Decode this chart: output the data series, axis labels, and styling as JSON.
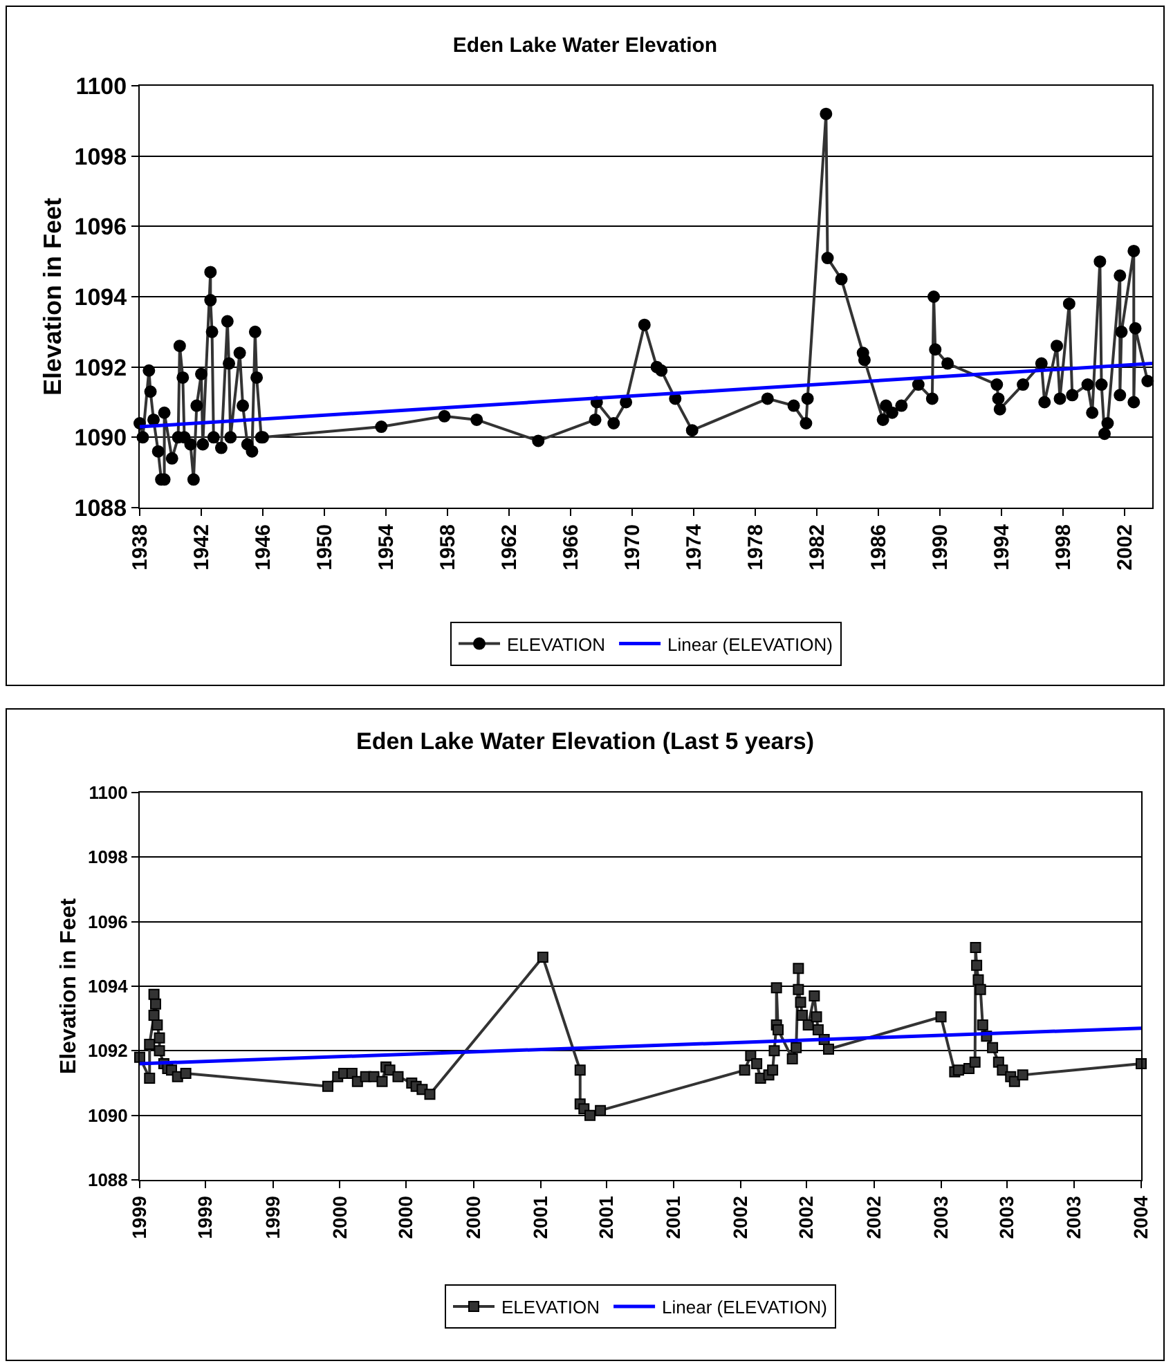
{
  "chart_data": [
    {
      "type": "line",
      "title": "Eden Lake Water Elevation",
      "ylabel": "Elevation in Feet",
      "marker": "circle",
      "grid": "y",
      "legend": "bottom",
      "xlim": [
        1938,
        2003.8
      ],
      "xticks": [
        1938,
        1942,
        1946,
        1950,
        1954,
        1958,
        1962,
        1966,
        1970,
        1974,
        1978,
        1982,
        1986,
        1990,
        1994,
        1998,
        2002
      ],
      "ylim": [
        1088,
        1100
      ],
      "yticks": [
        1088,
        1090,
        1092,
        1094,
        1096,
        1098,
        1100
      ],
      "series": [
        {
          "name": "ELEVATION",
          "color": "#333333",
          "x": [
            1938.0,
            1938.2,
            1938.6,
            1938.7,
            1938.9,
            1939.2,
            1939.4,
            1939.6,
            1939.6,
            1940.1,
            1940.5,
            1940.6,
            1940.8,
            1940.9,
            1941.3,
            1941.5,
            1941.7,
            1942.0,
            1942.1,
            1942.6,
            1942.6,
            1942.7,
            1942.8,
            1943.3,
            1943.7,
            1943.8,
            1943.9,
            1944.5,
            1944.7,
            1945.0,
            1945.3,
            1945.5,
            1945.6,
            1945.9,
            1946.0,
            1953.7,
            1957.8,
            1959.9,
            1963.9,
            1967.6,
            1967.7,
            1968.8,
            1969.6,
            1970.8,
            1971.6,
            1971.9,
            1972.8,
            1973.9,
            1978.8,
            1980.5,
            1981.3,
            1981.4,
            1982.6,
            1982.7,
            1983.6,
            1985.0,
            1985.1,
            1986.3,
            1986.5,
            1986.9,
            1987.5,
            1988.6,
            1989.5,
            1989.6,
            1989.7,
            1990.5,
            1993.7,
            1993.8,
            1993.9,
            1995.4,
            1996.6,
            1996.8,
            1997.6,
            1997.8,
            1998.4,
            1998.6,
            1999.6,
            1999.9,
            2000.4,
            2000.5,
            2000.7,
            2000.9,
            2001.7,
            2001.7,
            2001.8,
            2002.6,
            2002.6,
            2002.7,
            2003.5
          ],
          "values": [
            1090.4,
            1090.0,
            1091.9,
            1091.3,
            1090.5,
            1089.6,
            1088.8,
            1088.8,
            1090.7,
            1089.4,
            1090.0,
            1092.6,
            1091.7,
            1090.0,
            1089.8,
            1088.8,
            1090.9,
            1091.8,
            1089.8,
            1094.7,
            1093.9,
            1093.0,
            1090.0,
            1089.7,
            1093.3,
            1092.1,
            1090.0,
            1092.4,
            1090.9,
            1089.8,
            1089.6,
            1093.0,
            1091.7,
            1090.0,
            1090.0,
            1090.3,
            1090.6,
            1090.5,
            1089.9,
            1090.5,
            1091.0,
            1090.4,
            1091.0,
            1093.2,
            1092.0,
            1091.9,
            1091.1,
            1090.2,
            1091.1,
            1090.9,
            1090.4,
            1091.1,
            1099.2,
            1095.1,
            1094.5,
            1092.4,
            1092.2,
            1090.5,
            1090.9,
            1090.7,
            1090.9,
            1091.5,
            1091.1,
            1094.0,
            1092.5,
            1092.1,
            1091.5,
            1091.1,
            1090.8,
            1091.5,
            1092.1,
            1091.0,
            1092.6,
            1091.1,
            1093.8,
            1091.2,
            1091.5,
            1090.7,
            1095.0,
            1091.5,
            1090.1,
            1090.4,
            1094.6,
            1091.2,
            1093.0,
            1095.3,
            1091.0,
            1093.1,
            1091.6
          ]
        },
        {
          "name": "Linear (ELEVATION)",
          "type": "line",
          "marker": "none",
          "color": "#0000ff",
          "x": [
            1938,
            2003.8
          ],
          "values": [
            1090.3,
            1092.1
          ]
        }
      ]
    },
    {
      "type": "line",
      "title": "Eden Lake Water Elevation (Last 5 years)",
      "ylabel": "Elevation in Feet",
      "marker": "square",
      "grid": "y",
      "legend": "bottom",
      "xlim": [
        "1999-01-01",
        "2004-01-01"
      ],
      "xticks": [
        {
          "value": "1999-01-01",
          "label": "1999"
        },
        {
          "value": "1999-05-01",
          "label": "1999"
        },
        {
          "value": "1999-09-01",
          "label": "1999"
        },
        {
          "value": "2000-01-01",
          "label": "2000"
        },
        {
          "value": "2000-05-01",
          "label": "2000"
        },
        {
          "value": "2000-09-01",
          "label": "2000"
        },
        {
          "value": "2001-01-01",
          "label": "2001"
        },
        {
          "value": "2001-05-01",
          "label": "2001"
        },
        {
          "value": "2001-09-01",
          "label": "2001"
        },
        {
          "value": "2002-01-01",
          "label": "2002"
        },
        {
          "value": "2002-05-01",
          "label": "2002"
        },
        {
          "value": "2002-09-01",
          "label": "2002"
        },
        {
          "value": "2003-01-01",
          "label": "2003"
        },
        {
          "value": "2003-05-01",
          "label": "2003"
        },
        {
          "value": "2003-09-01",
          "label": "2003"
        },
        {
          "value": "2004-01-01",
          "label": "2004"
        }
      ],
      "ylim": [
        1088,
        1100
      ],
      "yticks": [
        1088,
        1090,
        1092,
        1094,
        1096,
        1098,
        1100
      ],
      "series": [
        {
          "name": "ELEVATION",
          "color": "#333333",
          "x": [
            "1999-01-01",
            "1999-01-19",
            "1999-01-19",
            "1999-01-27",
            "1999-01-27",
            "1999-01-30",
            "1999-02-02",
            "1999-02-06",
            "1999-02-06",
            "1999-02-14",
            "1999-02-21",
            "1999-02-28",
            "1999-03-11",
            "1999-03-26",
            "1999-12-10",
            "1999-12-28",
            "2000-01-08",
            "2000-01-23",
            "2000-02-02",
            "2000-02-17",
            "2000-03-03",
            "2000-03-18",
            "2000-03-25",
            "2000-04-01",
            "2000-04-16",
            "2000-05-11",
            "2000-05-19",
            "2000-05-30",
            "2000-06-13",
            "2001-01-05",
            "2001-03-14",
            "2001-03-14",
            "2001-03-21",
            "2001-04-01",
            "2001-04-20",
            "2002-01-08",
            "2002-01-19",
            "2002-01-30",
            "2002-02-06",
            "2002-02-21",
            "2002-02-28",
            "2002-03-03",
            "2002-03-07",
            "2002-03-07",
            "2002-03-10",
            "2002-04-05",
            "2002-04-12",
            "2002-04-16",
            "2002-04-16",
            "2002-04-20",
            "2002-04-23",
            "2002-05-04",
            "2002-05-15",
            "2002-05-19",
            "2002-05-22",
            "2002-06-02",
            "2002-06-10",
            "2003-01-01",
            "2003-01-26",
            "2003-02-02",
            "2003-02-21",
            "2003-03-04",
            "2003-03-05",
            "2003-03-07",
            "2003-03-10",
            "2003-03-14",
            "2003-03-18",
            "2003-03-25",
            "2003-04-05",
            "2003-04-16",
            "2003-04-23",
            "2003-05-08",
            "2003-05-15",
            "2003-05-30",
            "2004-01-01"
          ],
          "values": [
            1091.8,
            1091.15,
            1092.2,
            1093.1,
            1093.75,
            1093.45,
            1092.8,
            1092.4,
            1092.0,
            1091.6,
            1091.45,
            1091.4,
            1091.2,
            1091.3,
            1090.9,
            1091.2,
            1091.3,
            1091.3,
            1091.05,
            1091.2,
            1091.2,
            1091.05,
            1091.5,
            1091.4,
            1091.2,
            1091.0,
            1090.9,
            1090.8,
            1090.65,
            1094.9,
            1091.4,
            1090.35,
            1090.2,
            1090.0,
            1090.15,
            1091.4,
            1091.85,
            1091.6,
            1091.15,
            1091.25,
            1091.4,
            1092.0,
            1092.8,
            1093.95,
            1092.65,
            1091.75,
            1092.1,
            1094.55,
            1093.9,
            1093.5,
            1093.1,
            1092.8,
            1093.7,
            1093.05,
            1092.65,
            1092.35,
            1092.05,
            1093.05,
            1091.35,
            1091.4,
            1091.45,
            1091.65,
            1095.2,
            1094.65,
            1094.2,
            1093.9,
            1092.8,
            1092.45,
            1092.1,
            1091.65,
            1091.4,
            1091.2,
            1091.05,
            1091.25,
            1091.6
          ]
        },
        {
          "name": "Linear (ELEVATION)",
          "type": "line",
          "marker": "none",
          "color": "#0000ff",
          "x": [
            "1999-01-01",
            "2004-01-01"
          ],
          "values": [
            1091.6,
            1092.7
          ]
        }
      ]
    }
  ]
}
